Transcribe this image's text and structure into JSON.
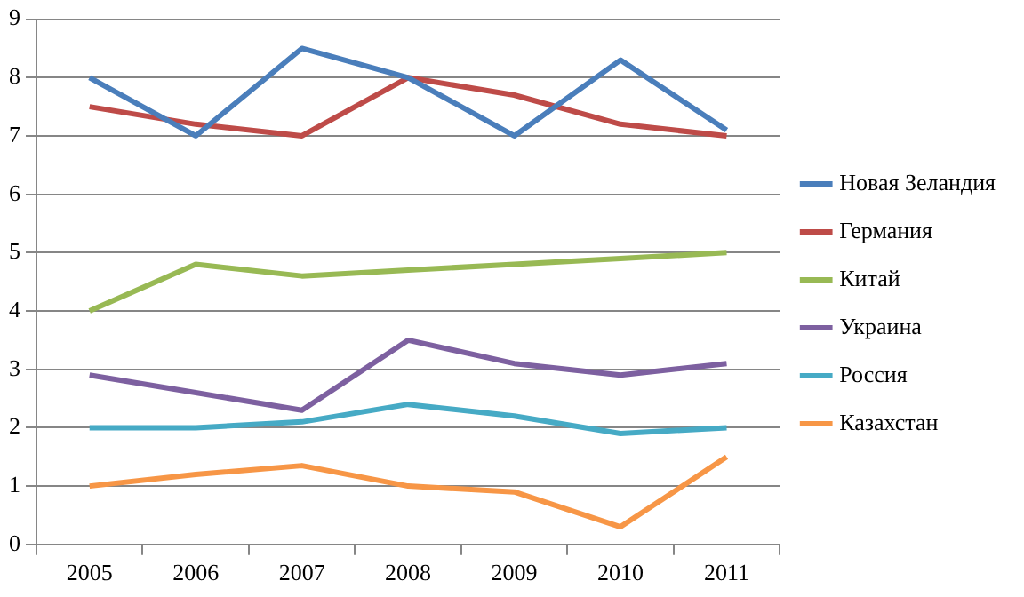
{
  "chart_data": {
    "type": "line",
    "categories": [
      "2005",
      "2006",
      "2007",
      "2008",
      "2009",
      "2010",
      "2011"
    ],
    "series": [
      {
        "name": "Новая Зеландия",
        "color": "#4a7ebb",
        "values": [
          8,
          7,
          8.5,
          8,
          7,
          8.3,
          7.1
        ]
      },
      {
        "name": "Германия",
        "color": "#be4b48",
        "values": [
          7.5,
          7.2,
          7,
          8,
          7.7,
          7.2,
          7
        ]
      },
      {
        "name": "Китай",
        "color": "#98b954",
        "values": [
          4,
          4.8,
          4.6,
          4.7,
          4.8,
          4.9,
          5
        ]
      },
      {
        "name": "Украина",
        "color": "#7d60a0",
        "values": [
          2.9,
          2.6,
          2.3,
          3.5,
          3.1,
          2.9,
          3.1
        ]
      },
      {
        "name": "Россия",
        "color": "#46aac5",
        "values": [
          2,
          2,
          2.1,
          2.4,
          2.2,
          1.9,
          2
        ]
      },
      {
        "name": "Казахстан",
        "color": "#f79646",
        "values": [
          1,
          1.2,
          1.35,
          1,
          0.9,
          0.3,
          1.5
        ]
      }
    ],
    "ylim": [
      0,
      9
    ],
    "yticks": [
      0,
      1,
      2,
      3,
      4,
      5,
      6,
      7,
      8,
      9
    ],
    "grid": "y",
    "legend": "right",
    "marker": "none",
    "line_style": "solid"
  }
}
